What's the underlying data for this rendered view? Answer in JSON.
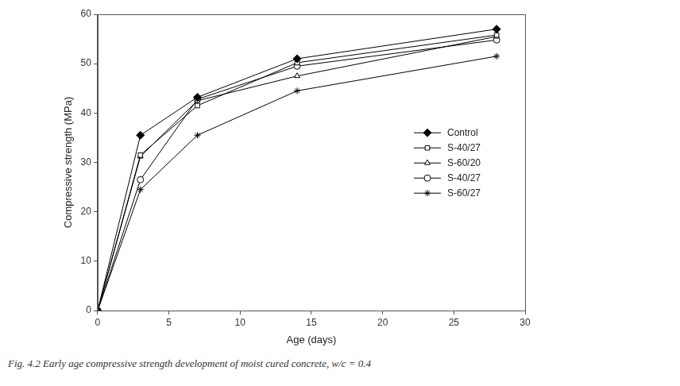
{
  "chart_data": {
    "type": "line",
    "caption": "Fig. 4.2 Early age compressive strength development of moist cured concrete, w/c = 0.4",
    "x_label": "Age (days)",
    "y_label": "Compressive strength (MPa)",
    "x": [
      0,
      3,
      7,
      14,
      28
    ],
    "series": [
      {
        "name": "Control",
        "color": "#000000",
        "marker": "diamond",
        "values": [
          0,
          35.5,
          43.2,
          51,
          57
        ]
      },
      {
        "name": "S-40/27",
        "color": "#000000",
        "marker": "open_square",
        "values": [
          0,
          31.5,
          41.5,
          50.2,
          55.8
        ]
      },
      {
        "name": "S-60/20",
        "color": "#000000",
        "marker": "open_triangle",
        "values": [
          0,
          31.2,
          42.5,
          47.5,
          55.5
        ]
      },
      {
        "name": "S-40/27",
        "color": "#000000",
        "marker": "open_circle",
        "values": [
          0,
          26.5,
          42.8,
          49.5,
          54.8
        ]
      },
      {
        "name": "S-60/27",
        "color": "#000000",
        "marker": "asterisk",
        "values": [
          0,
          24.5,
          35.5,
          44.5,
          51.5
        ]
      }
    ],
    "xlim": [
      0,
      30
    ],
    "xticks": [
      0,
      5,
      10,
      15,
      20,
      25,
      30
    ],
    "ylim": [
      0,
      60
    ],
    "yticks": [
      0,
      10,
      20,
      30,
      40,
      50,
      60
    ],
    "grid": false,
    "legend": "right"
  }
}
